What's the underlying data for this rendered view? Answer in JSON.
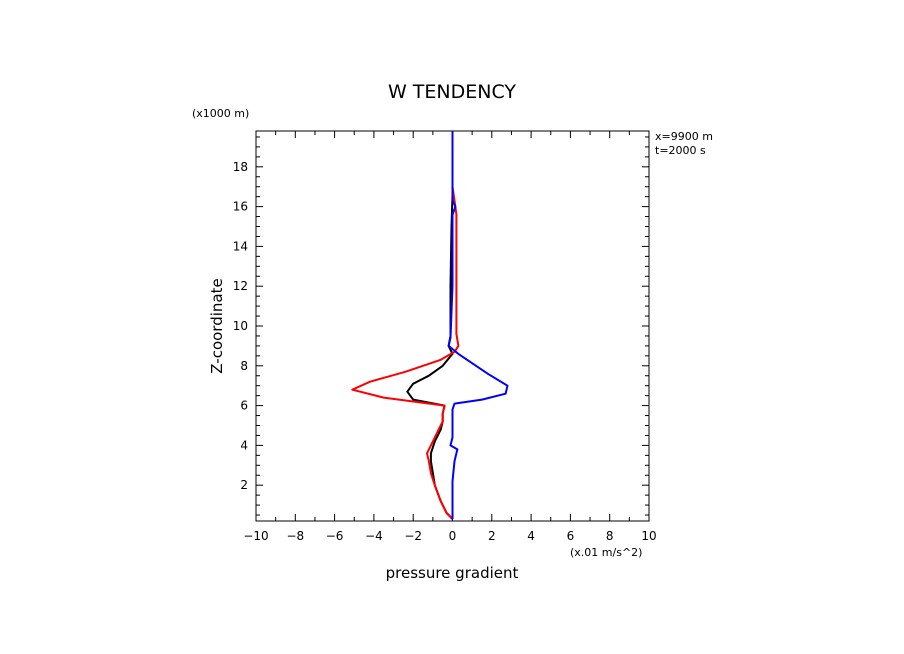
{
  "chart_data": {
    "type": "line",
    "title": "W TENDENCY",
    "xlabel": "pressure gradient",
    "ylabel": "Z-coordinate",
    "x_units": "(x.01 m/s^2)",
    "y_units": "(x1000 m)",
    "annotations": [
      "x=9900 m",
      "t=2000 s"
    ],
    "xlim": [
      -10,
      10
    ],
    "ylim": [
      0.2,
      19.8
    ],
    "xticks": [
      -10,
      -8,
      -6,
      -4,
      -2,
      0,
      2,
      4,
      6,
      8,
      10
    ],
    "yticks": [
      2,
      4,
      6,
      8,
      10,
      12,
      14,
      16,
      18
    ],
    "grid": false,
    "series": [
      {
        "color": "#000000",
        "points": [
          [
            0,
            0.3
          ],
          [
            -0.3,
            0.6
          ],
          [
            -0.6,
            1.2
          ],
          [
            -0.9,
            2
          ],
          [
            -1,
            2.6
          ],
          [
            -1.1,
            3.2
          ],
          [
            -1.1,
            3.6
          ],
          [
            -0.9,
            4.2
          ],
          [
            -0.6,
            4.8
          ],
          [
            -0.5,
            5.2
          ],
          [
            -0.5,
            5.6
          ],
          [
            -0.4,
            6
          ],
          [
            -2,
            6.3
          ],
          [
            -2.3,
            6.7
          ],
          [
            -2,
            7.1
          ],
          [
            -1.2,
            7.5
          ],
          [
            -0.5,
            8
          ],
          [
            0,
            8.6
          ],
          [
            -0.2,
            9
          ],
          [
            -0.1,
            9.5
          ],
          [
            -0.1,
            12
          ],
          [
            -0.05,
            15
          ],
          [
            0,
            16.6
          ],
          [
            0,
            19.8
          ]
        ]
      },
      {
        "color": "#ff0000",
        "points": [
          [
            0,
            0.3
          ],
          [
            -0.3,
            0.6
          ],
          [
            -0.6,
            1.2
          ],
          [
            -0.9,
            2
          ],
          [
            -1.1,
            2.6
          ],
          [
            -1.2,
            3.2
          ],
          [
            -1.3,
            3.6
          ],
          [
            -1,
            4.2
          ],
          [
            -0.7,
            4.8
          ],
          [
            -0.5,
            5.2
          ],
          [
            -0.5,
            5.6
          ],
          [
            -0.4,
            6
          ],
          [
            -3.5,
            6.4
          ],
          [
            -5.1,
            6.8
          ],
          [
            -4.2,
            7.2
          ],
          [
            -2.4,
            7.7
          ],
          [
            -0.6,
            8.3
          ],
          [
            0.1,
            8.7
          ],
          [
            0.3,
            9
          ],
          [
            0.2,
            9.6
          ],
          [
            0.2,
            12
          ],
          [
            0.2,
            15.6
          ],
          [
            0.1,
            16.3
          ],
          [
            0,
            17
          ],
          [
            0,
            19.8
          ]
        ]
      },
      {
        "color": "#0000ff",
        "points": [
          [
            0,
            0.3
          ],
          [
            0,
            1.2
          ],
          [
            0,
            2.2
          ],
          [
            0.1,
            3.2
          ],
          [
            0.2,
            3.6
          ],
          [
            0.25,
            3.8
          ],
          [
            -0.1,
            4
          ],
          [
            0,
            4.4
          ],
          [
            0,
            5.2
          ],
          [
            0,
            5.8
          ],
          [
            0.1,
            6.1
          ],
          [
            1.5,
            6.3
          ],
          [
            2.7,
            6.6
          ],
          [
            2.8,
            7
          ],
          [
            1.8,
            7.6
          ],
          [
            0.3,
            8.6
          ],
          [
            -0.2,
            9
          ],
          [
            -0.1,
            9.4
          ],
          [
            0,
            12
          ],
          [
            0,
            15.6
          ],
          [
            0.15,
            16
          ],
          [
            0,
            16.3
          ],
          [
            0,
            19.8
          ]
        ]
      }
    ]
  }
}
